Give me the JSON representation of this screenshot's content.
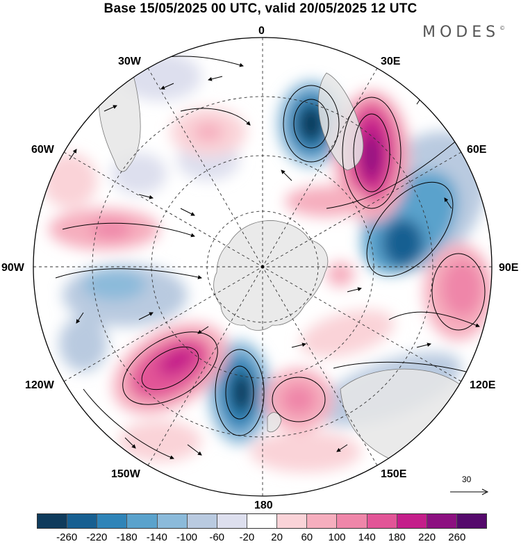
{
  "header": {
    "title": "Base 15/05/2025 00 UTC, valid 20/05/2025 12 UTC",
    "brand": "MODES",
    "brand_mark": "©"
  },
  "map": {
    "projection": "south polar stereographic",
    "longitude_labels": {
      "top": "0",
      "top_right": "30E",
      "right_upper": "60E",
      "right": "90E",
      "right_lower": "120E",
      "bottom_right": "150E",
      "bottom": "180",
      "bottom_left": "150W",
      "left_lower": "120W",
      "left": "90W",
      "left_upper": "60W",
      "top_left": "30W"
    },
    "reference_vector": "30",
    "colors": {
      "land": "#e6e6e6",
      "coast": "#777777",
      "graticule": "#333333"
    }
  },
  "colorbar": {
    "ticks": [
      "-260",
      "-220",
      "-180",
      "-140",
      "-100",
      "-60",
      "-20",
      "20",
      "60",
      "100",
      "140",
      "180",
      "220",
      "260"
    ],
    "colors": [
      "#0f3b5c",
      "#175f91",
      "#2f84b8",
      "#5aa2cc",
      "#8bbada",
      "#b9cae0",
      "#dddfee",
      "#ffffff",
      "#fad3d8",
      "#f6aebe",
      "#ef86a9",
      "#e25597",
      "#c41e8a",
      "#8c1080",
      "#550a6c"
    ]
  }
}
